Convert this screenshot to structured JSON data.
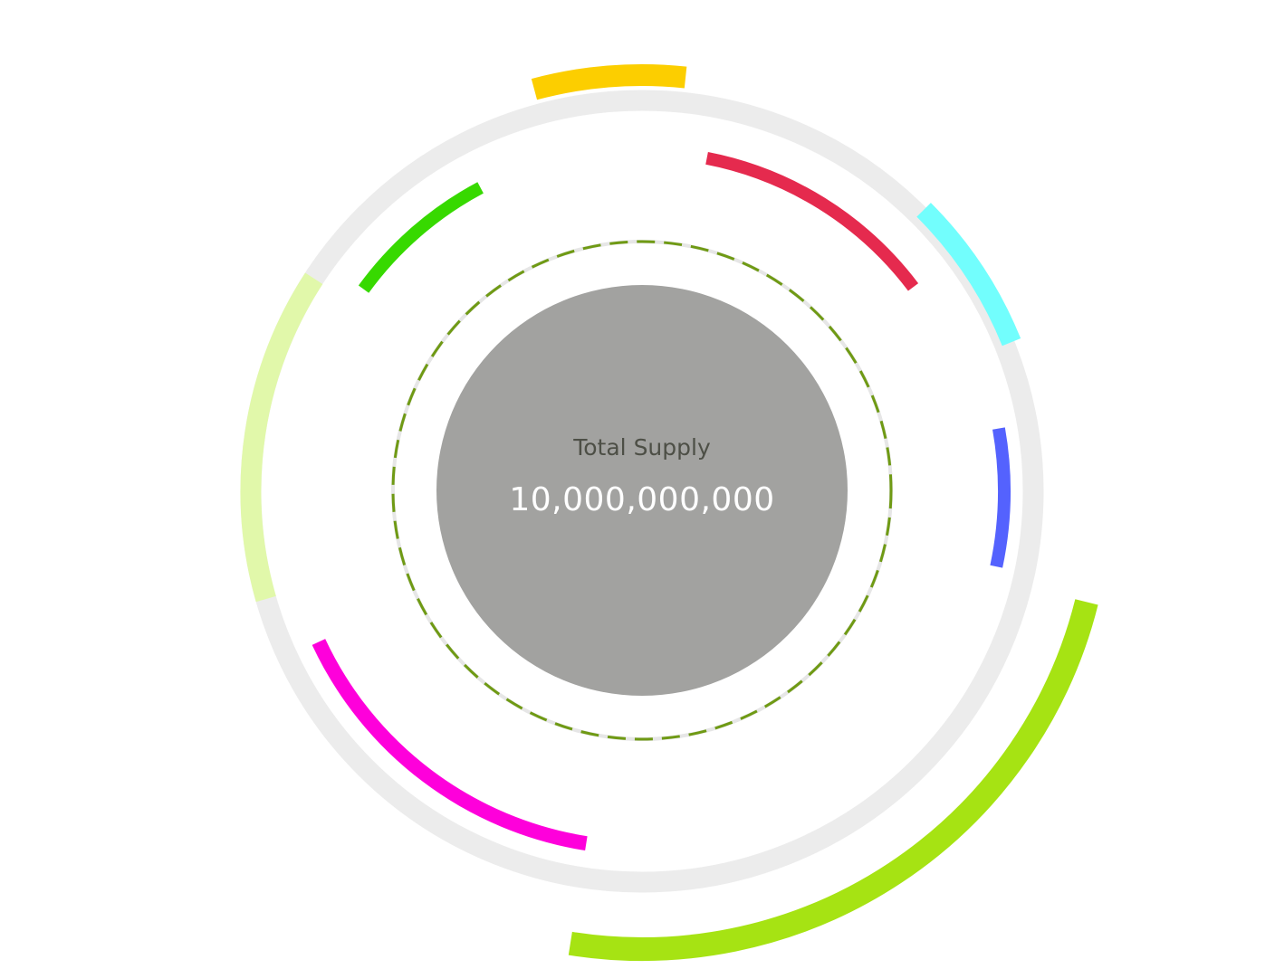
{
  "chart_data": {
    "type": "radial-arcs",
    "center_title": "Total Supply",
    "center_value": "10,000,000,000",
    "colors": {
      "track": "#ececec",
      "hub": "#a2a2a0",
      "dashes": "#6f9a14",
      "title": "#4d4f46",
      "value": "#ffffff"
    },
    "segments": [
      {
        "color": "#fcce00",
        "start_deg": 345,
        "end_deg": 6
      },
      {
        "color": "#e52a4e",
        "start_deg": 11,
        "end_deg": 53
      },
      {
        "color": "#72fefd",
        "start_deg": 45,
        "end_deg": 68
      },
      {
        "color": "#5462fe",
        "start_deg": 80,
        "end_deg": 102
      },
      {
        "color": "#a6e313",
        "start_deg": 104,
        "end_deg": 189
      },
      {
        "color": "#fe00db",
        "start_deg": 189,
        "end_deg": 245
      },
      {
        "color": "#e1f8aa",
        "start_deg": 254,
        "end_deg": 303
      },
      {
        "color": "#37d900",
        "start_deg": 306,
        "end_deg": 332
      }
    ]
  }
}
